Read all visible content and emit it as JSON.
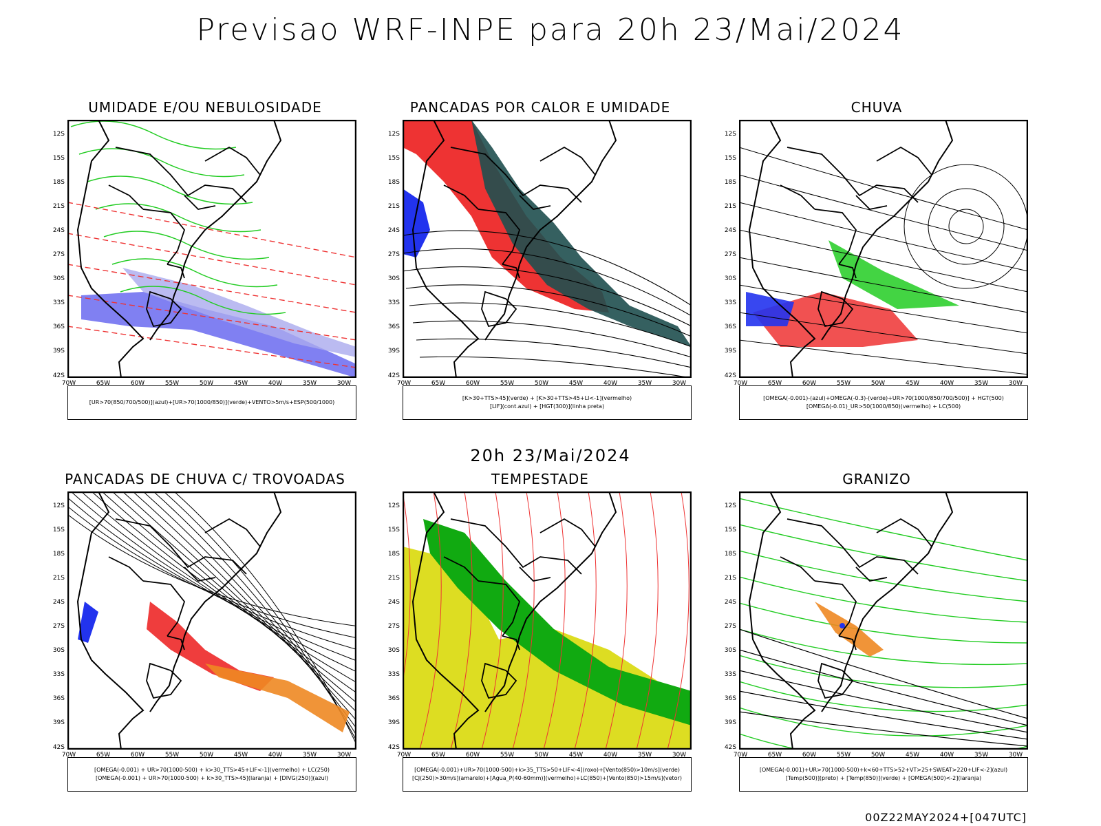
{
  "title": "Previsao WRF-INPE  para 20h 23/Mai/2024",
  "mid_title": "20h 23/Mai/2024",
  "footer": "00Z22MAY2024+[047UTC]",
  "axes": {
    "lat": [
      "12S",
      "15S",
      "18S",
      "21S",
      "24S",
      "27S",
      "30S",
      "33S",
      "36S",
      "39S",
      "42S"
    ],
    "lon": [
      "70W",
      "65W",
      "60W",
      "55W",
      "50W",
      "45W",
      "40W",
      "35W",
      "30W"
    ]
  },
  "panels": [
    {
      "title": "UMIDADE E/OU NEBULOSIDADE",
      "legend": [
        "[UR>70(850/700/500)](azul)+[UR>70(1000/850)](verde)+VENTO>5m/s+ESP(500/1000)"
      ],
      "colors": [
        "#5555ee",
        "#22cc22",
        "#ee3333"
      ]
    },
    {
      "title": "PANCADAS POR CALOR E UMIDADE",
      "legend": [
        "[K>30+TTS>45](verde) + [K>30+TTS>45+LI<-1](vermelho)",
        "[LIF](cont.azul) + [HGT(300)](linha preta)"
      ],
      "colors": [
        "#1f4f4f",
        "#ee3333",
        "#2233ee"
      ]
    },
    {
      "title": "CHUVA",
      "legend": [
        "[OMEGA(-0.001)-(azul)+OMEGA(-0.3)-(verde)+UR>70(1000/850/700/500)] + HGT(500)",
        "[OMEGA(-0.01)_UR>50(1000/850)(vermelho) + LC(500)"
      ],
      "colors": [
        "#2233ee",
        "#22cc22",
        "#ee3333"
      ]
    },
    {
      "title": "PANCADAS DE CHUVA C/ TROVOADAS",
      "legend": [
        "[OMEGA(-0.001) + UR>70(1000-500) + k>30_TTS>45+LIF<-1](vermelho) + LC(250)",
        "[OMEGA(-0.001) + UR>70(1000-500) + k>30_TTS>45](laranja) + [DIVG(250)](azul)"
      ],
      "colors": [
        "#ee3333",
        "#ee8822",
        "#2233ee"
      ]
    },
    {
      "title": "TEMPESTADE",
      "legend": [
        "[OMEGA(-0.001)+UR>70(1000-500)+k>35_TTS>50+LIF<-4](roxo)+[Vento(850)>10m/s](verde)",
        "[CJ(250)>30m/s](amarelo)+[Agua_P(40-60mm)](vermelho)+LC(850)+[Vento(850)>15m/s](vetor)"
      ],
      "colors": [
        "#dddd22",
        "#11aa11",
        "#ee3333"
      ]
    },
    {
      "title": "GRANIZO",
      "legend": [
        "[OMEGA(-0.001)+UR>70(1000-500)+k<60+TTS>52+VT>25+SWEAT>220+LIF<-2](azul)",
        "[Temp(500)](preto) + [Temp(850)](verde) + [OMEGA(500)<-2](laranja)"
      ],
      "colors": [
        "#22cc22",
        "#ee8822",
        "#2233ee"
      ]
    }
  ]
}
